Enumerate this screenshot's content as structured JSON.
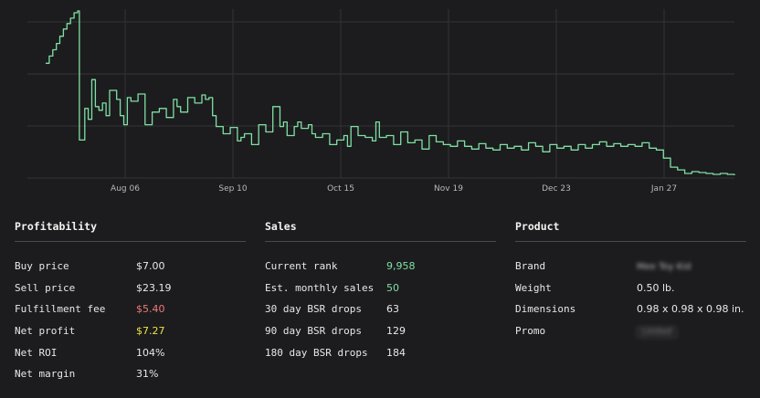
{
  "chart_data": {
    "type": "line",
    "x_ticks": [
      "Aug 06",
      "Sep 10",
      "Oct 15",
      "Nov 19",
      "Dec 23",
      "Jan 27"
    ],
    "series": [
      {
        "values": [
          [
            0,
            60
          ],
          [
            1,
            52
          ],
          [
            2,
            45
          ],
          [
            3,
            38
          ],
          [
            4,
            30
          ],
          [
            5,
            22
          ],
          [
            6,
            16
          ],
          [
            7,
            10
          ],
          [
            8,
            4
          ],
          [
            9,
            2
          ],
          [
            9.5,
            145
          ],
          [
            11,
            110
          ],
          [
            12,
            122
          ],
          [
            13,
            78
          ],
          [
            14,
            108
          ],
          [
            15,
            112
          ],
          [
            16,
            104
          ],
          [
            17,
            118
          ],
          [
            18,
            90
          ],
          [
            20,
            100
          ],
          [
            21,
            118
          ],
          [
            22,
            128
          ],
          [
            23,
            98
          ],
          [
            24,
            102
          ],
          [
            26,
            94
          ],
          [
            28,
            128
          ],
          [
            30,
            114
          ],
          [
            32,
            110
          ],
          [
            34,
            120
          ],
          [
            36,
            100
          ],
          [
            37,
            108
          ],
          [
            38,
            114
          ],
          [
            40,
            98
          ],
          [
            42,
            104
          ],
          [
            44,
            95
          ],
          [
            45,
            100
          ],
          [
            46,
            98
          ],
          [
            47,
            118
          ],
          [
            48,
            130
          ],
          [
            50,
            138
          ],
          [
            52,
            131
          ],
          [
            54,
            146
          ],
          [
            55,
            142
          ],
          [
            56,
            138
          ],
          [
            58,
            150
          ],
          [
            60,
            128
          ],
          [
            62,
            136
          ],
          [
            64,
            108
          ],
          [
            66,
            130
          ],
          [
            67,
            125
          ],
          [
            68,
            140
          ],
          [
            70,
            130
          ],
          [
            71,
            125
          ],
          [
            72,
            132
          ],
          [
            74,
            128
          ],
          [
            75,
            138
          ],
          [
            76,
            142
          ],
          [
            78,
            138
          ],
          [
            80,
            150
          ],
          [
            82,
            145
          ],
          [
            84,
            140
          ],
          [
            85,
            152
          ],
          [
            86,
            130
          ],
          [
            88,
            140
          ],
          [
            90,
            142
          ],
          [
            92,
            146
          ],
          [
            93,
            125
          ],
          [
            94,
            142
          ],
          [
            96,
            140
          ],
          [
            98,
            150
          ],
          [
            100,
            136
          ],
          [
            102,
            148
          ],
          [
            104,
            145
          ],
          [
            106,
            155
          ],
          [
            108,
            140
          ],
          [
            110,
            147
          ],
          [
            112,
            150
          ],
          [
            114,
            152
          ],
          [
            116,
            146
          ],
          [
            118,
            152
          ],
          [
            120,
            155
          ],
          [
            122,
            149
          ],
          [
            124,
            154
          ],
          [
            126,
            156
          ],
          [
            128,
            150
          ],
          [
            130,
            154
          ],
          [
            132,
            152
          ],
          [
            134,
            156
          ],
          [
            136,
            148
          ],
          [
            138,
            152
          ],
          [
            140,
            158
          ],
          [
            142,
            150
          ],
          [
            144,
            154
          ],
          [
            146,
            152
          ],
          [
            148,
            156
          ],
          [
            150,
            150
          ],
          [
            152,
            154
          ],
          [
            154,
            150
          ],
          [
            156,
            147
          ],
          [
            158,
            152
          ],
          [
            160,
            149
          ],
          [
            162,
            152
          ],
          [
            164,
            150
          ],
          [
            166,
            152
          ],
          [
            168,
            148
          ],
          [
            170,
            154
          ],
          [
            172,
            156
          ],
          [
            174,
            165
          ],
          [
            176,
            175
          ],
          [
            178,
            178
          ],
          [
            180,
            182
          ],
          [
            182,
            180
          ],
          [
            184,
            181
          ],
          [
            186,
            182
          ],
          [
            188,
            183
          ],
          [
            190,
            182
          ],
          [
            192,
            183
          ],
          [
            194,
            184
          ]
        ]
      }
    ],
    "grid": true,
    "legend": "none",
    "line_color": "#7fe0a4"
  },
  "profitability": {
    "title": "Profitability",
    "rows": [
      {
        "label": "Buy price",
        "value": "$7.00"
      },
      {
        "label": "Sell price",
        "value": "$23.19"
      },
      {
        "label": "Fulfillment fee",
        "value": "$5.40",
        "color": "#f07a78"
      },
      {
        "label": "Net profit",
        "value": "$7.27",
        "color": "#ece445"
      },
      {
        "label": "Net ROI",
        "value": "104%"
      },
      {
        "label": "Net margin",
        "value": "31%"
      }
    ]
  },
  "sales": {
    "title": "Sales",
    "rows": [
      {
        "label": "Current rank",
        "value": "9,958",
        "color": "#7fe0a4"
      },
      {
        "label": "Est. monthly sales",
        "value": "50",
        "color": "#7fe0a4"
      },
      {
        "label": "30 day BSR drops",
        "value": "63"
      },
      {
        "label": "90 day BSR drops",
        "value": "129"
      },
      {
        "label": "180 day BSR drops",
        "value": "184"
      }
    ]
  },
  "product": {
    "title": "Product",
    "rows": [
      {
        "label": "Brand",
        "value": "Mee Toy Kid"
      },
      {
        "label": "Weight",
        "value": "0.50 lb."
      },
      {
        "label": "Dimensions",
        "value": "0.98 x 0.98 x 0.98 in."
      },
      {
        "label": "Promo",
        "value": "Limited"
      }
    ]
  }
}
